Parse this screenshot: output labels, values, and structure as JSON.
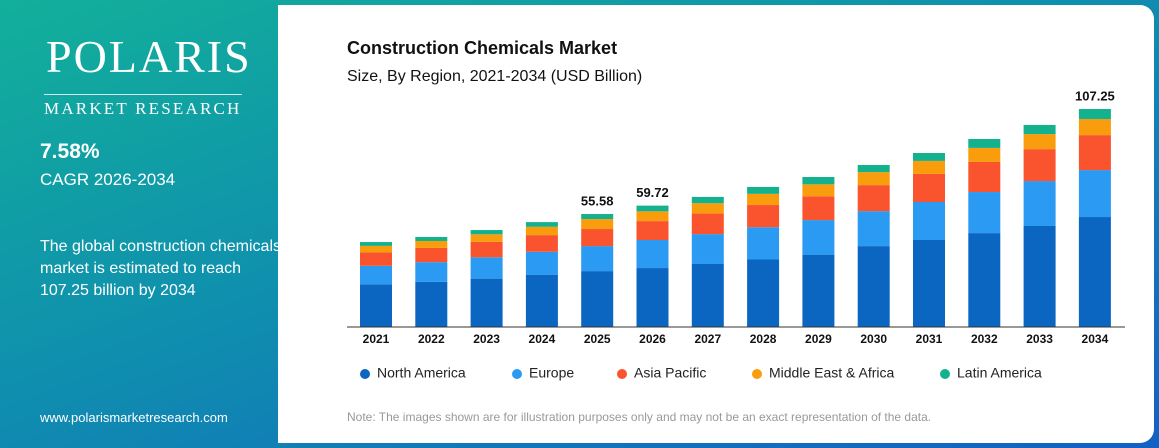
{
  "sidebar": {
    "brand": "POLARIS",
    "brand_sub": "MARKET RESEARCH",
    "cagr": "7.58%",
    "cagr_label": "CAGR 2026-2034",
    "description": "The global construction chemicals market is estimated to reach 107.25 billion by 2034",
    "website": "www.polarismarketresearch.com"
  },
  "note": "Note: The images shown are for illustration purposes only and may not be an exact representation of the data.",
  "chart_data": {
    "type": "stacked_bar",
    "title": "Construction Chemicals Market",
    "subtitle": "Size, By Region, 2021-2034 (USD Billion)",
    "categories": [
      "2021",
      "2022",
      "2023",
      "2024",
      "2025",
      "2026",
      "2027",
      "2028",
      "2029",
      "2030",
      "2031",
      "2032",
      "2033",
      "2034"
    ],
    "series": [
      {
        "name": "North America",
        "color": "#0b66c2",
        "values": [
          21.0,
          22.2,
          23.8,
          25.6,
          27.5,
          29.0,
          31.0,
          33.2,
          35.6,
          39.8,
          42.8,
          46.2,
          49.7,
          54.1
        ]
      },
      {
        "name": "Europe",
        "color": "#2b9af3",
        "values": [
          9.1,
          9.7,
          10.5,
          11.4,
          12.3,
          13.8,
          14.7,
          15.9,
          17.0,
          17.2,
          18.7,
          20.2,
          22.1,
          23.1
        ]
      },
      {
        "name": "Asia Pacific",
        "color": "#f9542e",
        "values": [
          6.6,
          7.0,
          7.6,
          8.2,
          8.4,
          9.3,
          10.1,
          10.9,
          11.7,
          12.8,
          13.8,
          14.8,
          15.7,
          17.2
        ]
      },
      {
        "name": "Middle East & Africa",
        "color": "#f99d0c",
        "values": [
          3.2,
          3.4,
          3.7,
          4.1,
          4.9,
          4.8,
          5.1,
          5.5,
          5.9,
          6.4,
          6.4,
          6.9,
          7.4,
          7.9
        ]
      },
      {
        "name": "Latin America",
        "color": "#14b18e",
        "values": [
          1.9,
          2.0,
          2.1,
          2.3,
          2.48,
          2.82,
          3.1,
          3.4,
          3.6,
          3.5,
          3.9,
          4.4,
          4.5,
          4.95
        ]
      }
    ],
    "annotations": [
      {
        "x": "2025",
        "text": "55.58"
      },
      {
        "x": "2026",
        "text": "59.72"
      },
      {
        "x": "2034",
        "text": "107.25"
      }
    ],
    "legend": "bottom"
  }
}
